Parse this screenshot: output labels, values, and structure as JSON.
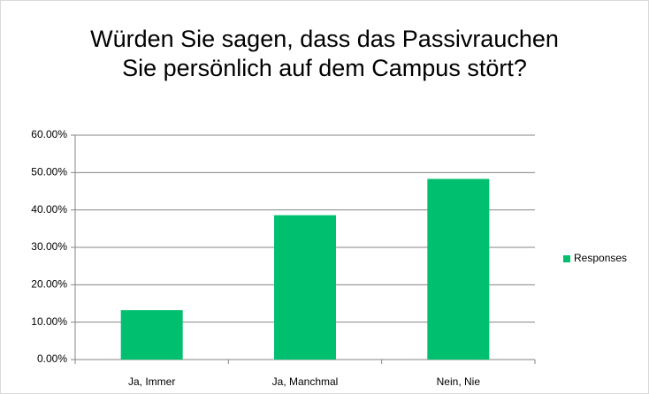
{
  "chart_data": {
    "type": "bar",
    "title": "Würden Sie sagen, dass das Passivrauchen Sie persönlich auf dem Campus stört?",
    "categories": [
      "Ja, Immer",
      "Ja, Manchmal",
      "Nein, Nie"
    ],
    "series": [
      {
        "name": "Responses",
        "color": "#00bf6f",
        "values": [
          13.2,
          38.6,
          48.3
        ]
      }
    ],
    "ylim": [
      0,
      60
    ],
    "yticks": [
      {
        "value": 0,
        "label": "0.00%"
      },
      {
        "value": 10,
        "label": "10.00%"
      },
      {
        "value": 20,
        "label": "20.00%"
      },
      {
        "value": 30,
        "label": "30.00%"
      },
      {
        "value": 40,
        "label": "40.00%"
      },
      {
        "value": 50,
        "label": "50.00%"
      },
      {
        "value": 60,
        "label": "60.00%"
      }
    ],
    "grid": true,
    "legend": "right"
  }
}
